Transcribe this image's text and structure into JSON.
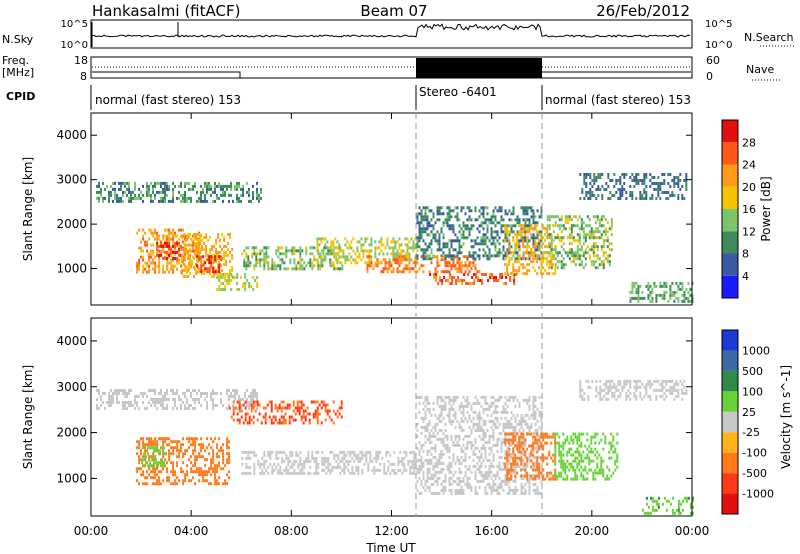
{
  "header": {
    "station": "Hankasalmi (fitACF)",
    "beam": "Beam 07",
    "date": "26/Feb/2012"
  },
  "noise_panel": {
    "left_label": "N.Sky",
    "right_label": "N.Search",
    "left_ticks": [
      "10^5",
      "10^0"
    ],
    "right_ticks": [
      "10^5",
      "10^0"
    ]
  },
  "freq_panel": {
    "left_label_1": "Freq.",
    "left_label_2": "[MHz]",
    "right_label": "Nave",
    "left_ticks": [
      "18",
      "8"
    ],
    "right_ticks": [
      "60",
      "0"
    ]
  },
  "cpid": {
    "label": "CPID",
    "segments": [
      {
        "text": "normal (fast stereo) 153",
        "start_hour": 0,
        "end_hour": 13
      },
      {
        "text": "Stereo -6401",
        "start_hour": 13,
        "end_hour": 18
      },
      {
        "text": "normal (fast stereo) 153",
        "start_hour": 18,
        "end_hour": 24
      }
    ]
  },
  "x_axis": {
    "label": "Time UT",
    "ticks": [
      "00:00",
      "04:00",
      "08:00",
      "12:00",
      "16:00",
      "20:00",
      "00:00"
    ]
  },
  "chart_data": [
    {
      "type": "heatmap",
      "title": "",
      "xlabel": "Time UT",
      "ylabel": "Slant Range [km]",
      "x_range_hours": [
        0,
        24
      ],
      "ylim": [
        180,
        4500
      ],
      "y_ticks": [
        "1000",
        "2000",
        "3000",
        "4000"
      ],
      "colorbar": {
        "label": "Power [dB]",
        "ticks": [
          "4",
          "8",
          "12",
          "16",
          "20",
          "24",
          "28"
        ],
        "colors": [
          "#1a1aff",
          "#3a5aa6",
          "#3c8c5a",
          "#7bc46a",
          "#f5c400",
          "#ff9a1a",
          "#ff5a1a",
          "#e31010"
        ]
      },
      "regions": [
        {
          "t0": 0.2,
          "t1": 6.8,
          "r0": 2500,
          "r1": 2950,
          "value": 10
        },
        {
          "t0": 1.8,
          "t1": 4.4,
          "r0": 900,
          "r1": 1900,
          "value": 22
        },
        {
          "t0": 2.6,
          "t1": 3.6,
          "r0": 1200,
          "r1": 1600,
          "value": 27
        },
        {
          "t0": 3.6,
          "t1": 5.6,
          "r0": 800,
          "r1": 1800,
          "value": 20
        },
        {
          "t0": 4.2,
          "t1": 5.2,
          "r0": 900,
          "r1": 1300,
          "value": 27
        },
        {
          "t0": 5.0,
          "t1": 6.6,
          "r0": 500,
          "r1": 900,
          "value": 16
        },
        {
          "t0": 6.0,
          "t1": 10.0,
          "r0": 1000,
          "r1": 1500,
          "value": 14
        },
        {
          "t0": 9.0,
          "t1": 13.0,
          "r0": 1100,
          "r1": 1700,
          "value": 16
        },
        {
          "t0": 11.0,
          "t1": 15.5,
          "r0": 900,
          "r1": 1300,
          "value": 24
        },
        {
          "t0": 13.0,
          "t1": 18.0,
          "r0": 1200,
          "r1": 2400,
          "value": 9
        },
        {
          "t0": 13.5,
          "t1": 17.0,
          "r0": 650,
          "r1": 900,
          "value": 26
        },
        {
          "t0": 16.5,
          "t1": 18.5,
          "r0": 900,
          "r1": 2000,
          "value": 20
        },
        {
          "t0": 18.2,
          "t1": 20.8,
          "r0": 1000,
          "r1": 2200,
          "value": 14
        },
        {
          "t0": 19.5,
          "t1": 23.8,
          "r0": 2600,
          "r1": 3150,
          "value": 8
        },
        {
          "t0": 21.5,
          "t1": 24.0,
          "r0": 250,
          "r1": 700,
          "value": 12
        }
      ]
    },
    {
      "type": "heatmap",
      "title": "",
      "xlabel": "Time UT",
      "ylabel": "Slant Range [km]",
      "x_range_hours": [
        0,
        24
      ],
      "ylim": [
        180,
        4500
      ],
      "y_ticks": [
        "1000",
        "2000",
        "3000",
        "4000"
      ],
      "colorbar": {
        "label": "Velocity [m s^-1]",
        "ticks": [
          "1000",
          "500",
          "100",
          "25",
          "-25",
          "-100",
          "-500",
          "-1000"
        ],
        "colors": [
          "#1a3ad6",
          "#3a6aa6",
          "#2e8c46",
          "#6ad13a",
          "#c8c8c8",
          "#ffb21a",
          "#ff7a1a",
          "#ff3a1a",
          "#e31010"
        ]
      },
      "regions": [
        {
          "t0": 0.2,
          "t1": 6.6,
          "r0": 2500,
          "r1": 2950,
          "value": 0
        },
        {
          "t0": 1.8,
          "t1": 5.5,
          "r0": 900,
          "r1": 1900,
          "value": -300
        },
        {
          "t0": 2.0,
          "t1": 3.0,
          "r0": 1300,
          "r1": 1700,
          "value": 80
        },
        {
          "t0": 5.5,
          "t1": 10.0,
          "r0": 2200,
          "r1": 2700,
          "value": -500
        },
        {
          "t0": 6.0,
          "t1": 13.0,
          "r0": 1100,
          "r1": 1600,
          "value": 0
        },
        {
          "t0": 13.0,
          "t1": 18.0,
          "r0": 700,
          "r1": 2800,
          "value": 0
        },
        {
          "t0": 16.5,
          "t1": 18.5,
          "r0": 1000,
          "r1": 2000,
          "value": -200
        },
        {
          "t0": 18.5,
          "t1": 21.0,
          "r0": 1000,
          "r1": 2000,
          "value": 60
        },
        {
          "t0": 19.5,
          "t1": 23.8,
          "r0": 2700,
          "r1": 3150,
          "value": 0
        },
        {
          "t0": 22.0,
          "t1": 24.0,
          "r0": 250,
          "r1": 600,
          "value": 80
        }
      ]
    }
  ]
}
